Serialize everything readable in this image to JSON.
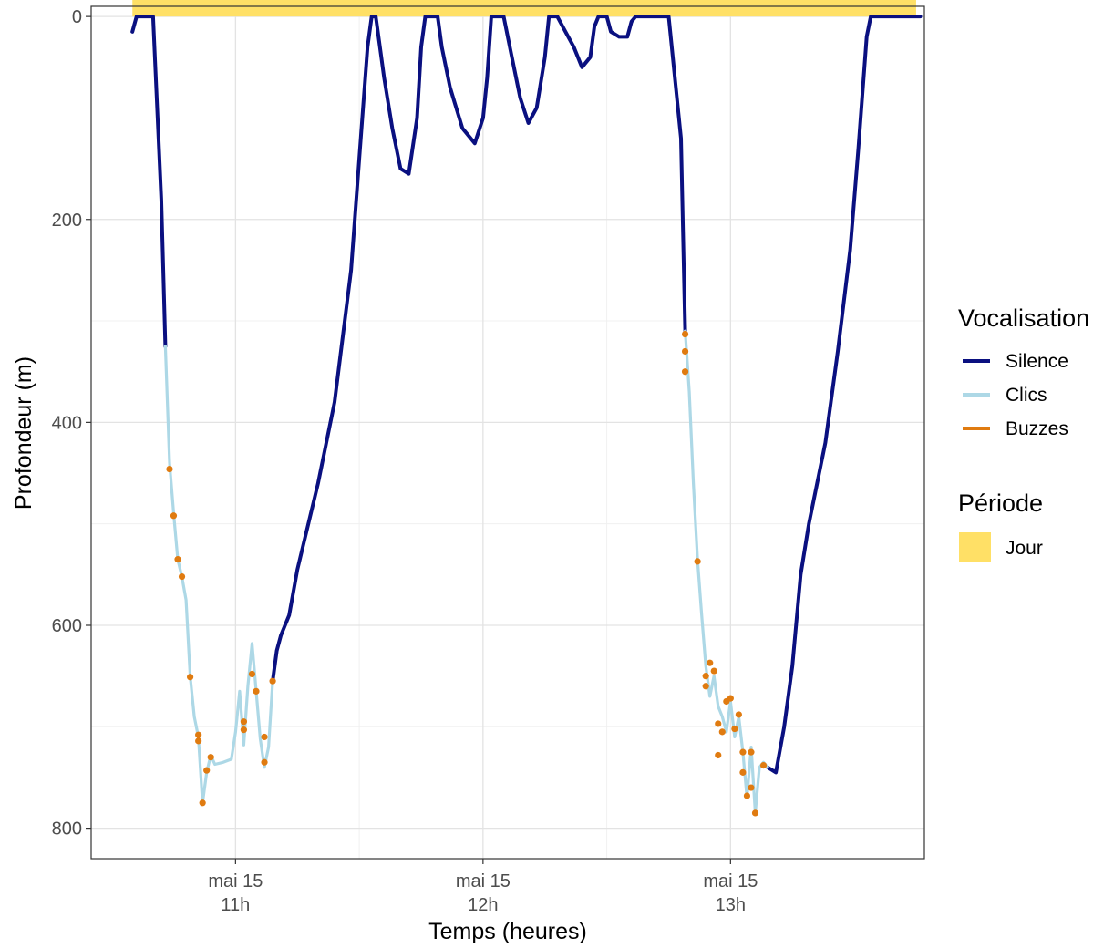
{
  "chart_data": {
    "type": "line",
    "xlabel": "Temps (heures)",
    "ylabel": "Profondeur (m)",
    "x_unit": "time of day (hours), 15 May",
    "xlim": [
      "10:25",
      "13:47"
    ],
    "ylim": [
      830,
      -10
    ],
    "y_reversed": true,
    "y_ticks": [
      0,
      200,
      400,
      600,
      800
    ],
    "x_ticks": [
      {
        "value": "11:00",
        "line1": "mai 15",
        "line2": "11h"
      },
      {
        "value": "12:00",
        "line1": "mai 15",
        "line2": "12h"
      },
      {
        "value": "13:00",
        "line1": "mai 15",
        "line2": "13h"
      }
    ],
    "grid": true,
    "legend": {
      "placement": "right",
      "vocalisation_title": "Vocalisation",
      "periode_title": "Période",
      "items": [
        {
          "label": "Silence",
          "color": "#0a1080"
        },
        {
          "label": "Clics",
          "color": "#add8e6"
        },
        {
          "label": "Buzzes",
          "color": "#e07b10"
        }
      ],
      "period_items": [
        {
          "label": "Jour",
          "color": "#ffe066"
        }
      ]
    },
    "day_period": {
      "start": "10:35",
      "end": "13:45",
      "depth": [
        0,
        0
      ]
    },
    "series": [
      {
        "name": "Silence",
        "color": "#0a1080",
        "segments": [
          [
            [
              "10:35",
              15
            ],
            [
              "10:36",
              0
            ],
            [
              "10:39",
              0
            ],
            [
              "10:40",
              0
            ],
            [
              "10:42",
              180
            ],
            [
              "10:43",
              325
            ]
          ],
          [
            [
              "11:09",
              655
            ],
            [
              "11:10",
              625
            ],
            [
              "11:11",
              610
            ],
            [
              "11:13",
              590
            ],
            [
              "11:15",
              545
            ],
            [
              "11:20",
              460
            ],
            [
              "11:24",
              380
            ],
            [
              "11:28",
              250
            ],
            [
              "11:30",
              140
            ],
            [
              "11:32",
              30
            ],
            [
              "11:33",
              0
            ],
            [
              "11:34",
              0
            ],
            [
              "11:36",
              60
            ],
            [
              "11:38",
              110
            ],
            [
              "11:40",
              150
            ],
            [
              "11:42",
              155
            ],
            [
              "11:44",
              100
            ],
            [
              "11:45",
              30
            ],
            [
              "11:46",
              0
            ],
            [
              "11:49",
              0
            ],
            [
              "11:50",
              30
            ],
            [
              "11:52",
              70
            ],
            [
              "11:55",
              110
            ],
            [
              "11:57",
              120
            ],
            [
              "11:58",
              125
            ],
            [
              "12:00",
              100
            ],
            [
              "12:01",
              60
            ],
            [
              "12:02",
              0
            ],
            [
              "12:05",
              0
            ],
            [
              "12:07",
              40
            ],
            [
              "12:09",
              80
            ],
            [
              "12:11",
              105
            ],
            [
              "12:13",
              90
            ],
            [
              "12:15",
              40
            ],
            [
              "12:16",
              0
            ],
            [
              "12:18",
              0
            ],
            [
              "12:20",
              15
            ],
            [
              "12:22",
              30
            ],
            [
              "12:24",
              50
            ],
            [
              "12:26",
              40
            ],
            [
              "12:27",
              10
            ],
            [
              "12:28",
              0
            ],
            [
              "12:30",
              0
            ],
            [
              "12:31",
              15
            ],
            [
              "12:33",
              20
            ],
            [
              "12:35",
              20
            ],
            [
              "12:36",
              5
            ],
            [
              "12:37",
              0
            ],
            [
              "12:45",
              0
            ],
            [
              "12:48",
              120
            ],
            [
              "12:49",
              310
            ]
          ],
          [
            [
              "13:09",
              740
            ],
            [
              "13:11",
              745
            ],
            [
              "13:13",
              700
            ],
            [
              "13:15",
              640
            ],
            [
              "13:17",
              550
            ],
            [
              "13:19",
              500
            ],
            [
              "13:23",
              420
            ],
            [
              "13:26",
              330
            ],
            [
              "13:29",
              230
            ],
            [
              "13:31",
              130
            ],
            [
              "13:33",
              20
            ],
            [
              "13:34",
              0
            ],
            [
              "13:37",
              0
            ],
            [
              "13:42",
              0
            ],
            [
              "13:46",
              0
            ]
          ]
        ]
      },
      {
        "name": "Clics",
        "color": "#add8e6",
        "segments": [
          [
            [
              "10:43",
              325
            ],
            [
              "10:44",
              440
            ],
            [
              "10:45",
              490
            ],
            [
              "10:46",
              535
            ],
            [
              "10:47",
              552
            ],
            [
              "10:48",
              575
            ],
            [
              "10:49",
              650
            ],
            [
              "10:50",
              690
            ],
            [
              "10:51",
              710
            ],
            [
              "10:52",
              775
            ],
            [
              "10:53",
              745
            ],
            [
              "10:54",
              728
            ],
            [
              "10:55",
              737
            ],
            [
              "10:57",
              735
            ],
            [
              "10:59",
              732
            ],
            [
              "11:00",
              705
            ],
            [
              "11:01",
              665
            ],
            [
              "11:02",
              718
            ],
            [
              "11:03",
              660
            ],
            [
              "11:04",
              618
            ],
            [
              "11:05",
              665
            ],
            [
              "11:06",
              712
            ],
            [
              "11:07",
              740
            ],
            [
              "11:08",
              720
            ],
            [
              "11:09",
              655
            ]
          ],
          [
            [
              "12:49",
              310
            ],
            [
              "12:50",
              370
            ],
            [
              "12:51",
              460
            ],
            [
              "12:52",
              535
            ],
            [
              "12:53",
              590
            ],
            [
              "12:54",
              640
            ],
            [
              "12:55",
              670
            ],
            [
              "12:56",
              650
            ],
            [
              "12:57",
              680
            ],
            [
              "12:58",
              690
            ],
            [
              "12:59",
              705
            ],
            [
              "13:00",
              675
            ],
            [
              "13:01",
              710
            ],
            [
              "13:02",
              690
            ],
            [
              "13:03",
              725
            ],
            [
              "13:04",
              770
            ],
            [
              "13:05",
              720
            ],
            [
              "13:06",
              785
            ],
            [
              "13:07",
              740
            ],
            [
              "13:08",
              735
            ],
            [
              "13:09",
              740
            ]
          ]
        ]
      },
      {
        "name": "Buzzes",
        "color": "#e07b10",
        "points": [
          [
            "10:44",
            446
          ],
          [
            "10:45",
            492
          ],
          [
            "10:46",
            535
          ],
          [
            "10:47",
            552
          ],
          [
            "10:49",
            651
          ],
          [
            "10:51",
            708
          ],
          [
            "10:51",
            714
          ],
          [
            "10:52",
            775
          ],
          [
            "10:53",
            743
          ],
          [
            "10:54",
            730
          ],
          [
            "11:02",
            695
          ],
          [
            "11:02",
            703
          ],
          [
            "11:04",
            648
          ],
          [
            "11:05",
            665
          ],
          [
            "11:07",
            710
          ],
          [
            "11:07",
            735
          ],
          [
            "11:09",
            655
          ],
          [
            "12:49",
            313
          ],
          [
            "12:49",
            330
          ],
          [
            "12:49",
            350
          ],
          [
            "12:52",
            537
          ],
          [
            "12:54",
            650
          ],
          [
            "12:54",
            660
          ],
          [
            "12:55",
            637
          ],
          [
            "12:56",
            645
          ],
          [
            "12:57",
            697
          ],
          [
            "12:57",
            728
          ],
          [
            "12:58",
            705
          ],
          [
            "12:59",
            675
          ],
          [
            "13:00",
            672
          ],
          [
            "13:01",
            702
          ],
          [
            "13:02",
            688
          ],
          [
            "13:03",
            725
          ],
          [
            "13:03",
            745
          ],
          [
            "13:04",
            768
          ],
          [
            "13:05",
            725
          ],
          [
            "13:05",
            760
          ],
          [
            "13:06",
            785
          ],
          [
            "13:08",
            738
          ]
        ]
      }
    ]
  }
}
